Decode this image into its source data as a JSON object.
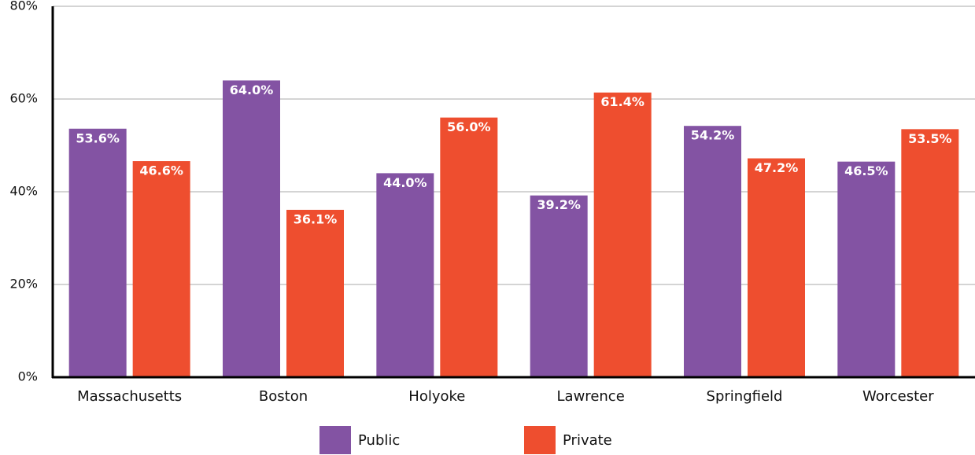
{
  "chart_data": {
    "type": "bar",
    "categories": [
      "Massachusetts",
      "Boston",
      "Holyoke",
      "Lawrence",
      "Springfield",
      "Worcester"
    ],
    "series": [
      {
        "name": "Public",
        "color": "#8353a3",
        "values": [
          53.6,
          64.0,
          44.0,
          39.2,
          54.2,
          46.5
        ],
        "value_labels": [
          "53.6%",
          "64.0%",
          "44.0%",
          "39.2%",
          "54.2%",
          "46.5%"
        ]
      },
      {
        "name": "Private",
        "color": "#ee4e2f",
        "values": [
          46.6,
          36.1,
          56.0,
          61.4,
          47.2,
          53.5
        ],
        "value_labels": [
          "46.6%",
          "36.1%",
          "56.0%",
          "61.4%",
          "47.2%",
          "53.5%"
        ]
      }
    ],
    "ylim": [
      0,
      80
    ],
    "yticks": [
      {
        "value": 0,
        "label": "0%"
      },
      {
        "value": 20,
        "label": "20%"
      },
      {
        "value": 40,
        "label": "40%"
      },
      {
        "value": 60,
        "label": "60%"
      },
      {
        "value": 80,
        "label": "80%"
      }
    ],
    "grid": true,
    "legend": "bottom"
  }
}
